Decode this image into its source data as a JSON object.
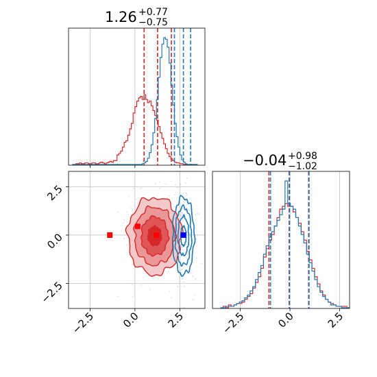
{
  "chart_data": [
    {
      "type": "histogram",
      "panel": "top-left",
      "title": {
        "value": "1.26",
        "plus": "+0.77",
        "minus": "−0.75"
      },
      "xlim": [
        -3.7,
        3.9
      ],
      "grid": true,
      "series": [
        {
          "color": "#d62728",
          "bins": [
            -3.5,
            3.5
          ],
          "counts": [
            0,
            0,
            1,
            1,
            2,
            1,
            1,
            2,
            2,
            1,
            1,
            2,
            2,
            1,
            1,
            2,
            3,
            2,
            1,
            2,
            3,
            4,
            3,
            5,
            5,
            12,
            14,
            17,
            22,
            28,
            30,
            37,
            45,
            52,
            65,
            73,
            80,
            84,
            86,
            82,
            88,
            82,
            78,
            80,
            74,
            68,
            62,
            56,
            48,
            40,
            33,
            26,
            20,
            14,
            10,
            7,
            5,
            3,
            2,
            2,
            1,
            1,
            0,
            0,
            0,
            0,
            0,
            0,
            0,
            0
          ],
          "quantile_lines": [
            0.51,
            1.26,
            2.03
          ]
        },
        {
          "color": "#1f77b4",
          "bins": [
            -3.5,
            3.5
          ],
          "counts": [
            0,
            0,
            0,
            0,
            0,
            0,
            0,
            0,
            0,
            0,
            0,
            0,
            0,
            0,
            0,
            0,
            0,
            0,
            0,
            0,
            0,
            0,
            0,
            0,
            0,
            0,
            0,
            0,
            0,
            0,
            0,
            0,
            0,
            0,
            0,
            0,
            0,
            0,
            0,
            1,
            2,
            4,
            8,
            15,
            25,
            40,
            58,
            82,
            110,
            135,
            152,
            160,
            158,
            148,
            128,
            100,
            75,
            52,
            35,
            22,
            12,
            6,
            3,
            1,
            0,
            0,
            0,
            0,
            0,
            0
          ],
          "quantile_lines": [
            2.2,
            2.7,
            3.1
          ]
        }
      ]
    },
    {
      "type": "contour",
      "panel": "bottom-left",
      "xlim": [
        -3.7,
        3.9
      ],
      "ylim": [
        -3.8,
        3.3
      ],
      "xticks": [
        "−2.5",
        "0.0",
        "2.5"
      ],
      "yticks": [
        "2.5",
        "0.0",
        "−2.5"
      ],
      "grid": true,
      "series": [
        {
          "color": "#d62728",
          "center": [
            1.1,
            -0.05
          ],
          "sigma": [
            0.75,
            1.0
          ],
          "contour_levels": [
            0.5,
            1.0,
            1.5,
            2.0
          ],
          "filled": true
        },
        {
          "color": "#1f77b4",
          "center": [
            2.7,
            -0.05
          ],
          "sigma": [
            0.3,
            1.0
          ],
          "contour_levels": [
            0.5,
            1.0,
            1.5,
            2.0
          ],
          "filled": false
        }
      ],
      "markers": [
        {
          "x": -1.4,
          "y": 0.0,
          "color": "#ff0000"
        },
        {
          "x": 0.15,
          "y": 0.45,
          "color": "#ff0000"
        },
        {
          "x": 1.2,
          "y": 0.0,
          "color": "#ff0000"
        },
        {
          "x": 2.7,
          "y": 0.0,
          "color": "#0000ff"
        }
      ]
    },
    {
      "type": "histogram",
      "panel": "bottom-right",
      "title": {
        "value": "−0.04",
        "plus": "+0.98",
        "minus": "−1.02"
      },
      "xlim": [
        -3.9,
        3.0
      ],
      "xticks": [
        "−2.5",
        "0.0",
        "2.5"
      ],
      "grid": true,
      "series": [
        {
          "color": "#d62728",
          "bins": [
            -3.5,
            3.0
          ],
          "counts": [
            0,
            1,
            0,
            2,
            1,
            2,
            3,
            3,
            4,
            6,
            8,
            10,
            14,
            18,
            22,
            28,
            36,
            42,
            48,
            52,
            58,
            64,
            70,
            72,
            74,
            72,
            72,
            68,
            64,
            60,
            54,
            48,
            40,
            34,
            28,
            22,
            17,
            12,
            9,
            6,
            4,
            3,
            2,
            1,
            1,
            1,
            1,
            0
          ],
          "quantile_lines": [
            -1.06,
            -0.04,
            0.94
          ]
        },
        {
          "color": "#1f77b4",
          "bins": [
            -3.5,
            3.0
          ],
          "counts": [
            0,
            0,
            1,
            1,
            1,
            2,
            3,
            4,
            5,
            7,
            9,
            12,
            15,
            20,
            25,
            30,
            38,
            44,
            50,
            54,
            58,
            62,
            66,
            70,
            90,
            74,
            72,
            70,
            64,
            58,
            52,
            46,
            38,
            32,
            26,
            20,
            15,
            11,
            8,
            6,
            4,
            2,
            2,
            1,
            1,
            0,
            0,
            0
          ],
          "quantile_lines": [
            -0.98,
            -0.02,
            0.96
          ]
        }
      ]
    }
  ]
}
